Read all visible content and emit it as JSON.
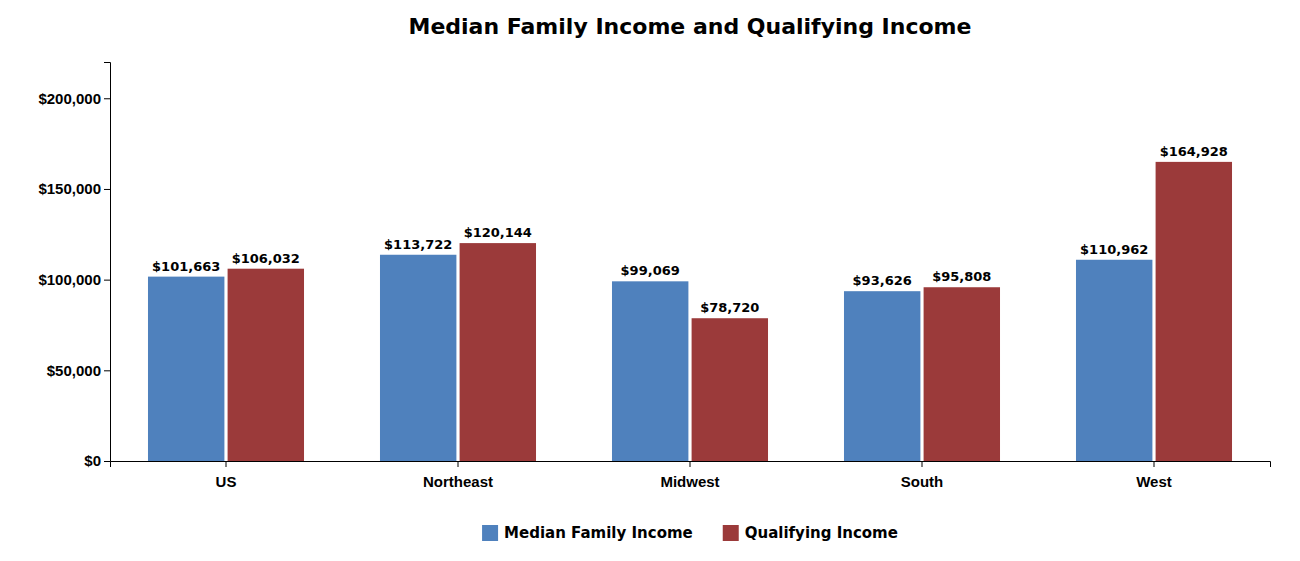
{
  "chart_data": {
    "type": "bar",
    "title": "Median Family Income and Qualifying Income",
    "categories": [
      "US",
      "Northeast",
      "Midwest",
      "South",
      "West"
    ],
    "series": [
      {
        "name": "Median Family Income",
        "color": "#4F81BD",
        "values": [
          101663,
          113722,
          99069,
          93626,
          110962
        ],
        "value_labels": [
          "$101,663",
          "$113,722",
          "$99,069",
          "$93,626",
          "$110,962"
        ]
      },
      {
        "name": "Qualifying Income",
        "color": "#9B3A3A",
        "values": [
          106032,
          120144,
          78720,
          95808,
          164928
        ],
        "value_labels": [
          "$106,032",
          "$120,144",
          "$78,720",
          "$95,808",
          "$164,928"
        ]
      }
    ],
    "ylim": [
      0,
      220000
    ],
    "yticks": [
      {
        "value": 0,
        "label": "$0"
      },
      {
        "value": 50000,
        "label": "$50,000"
      },
      {
        "value": 100000,
        "label": "$100,000"
      },
      {
        "value": 150000,
        "label": "$150,000"
      },
      {
        "value": 200000,
        "label": "$200,000"
      }
    ],
    "grid": false,
    "legend": "bottom",
    "data_labels": true
  }
}
